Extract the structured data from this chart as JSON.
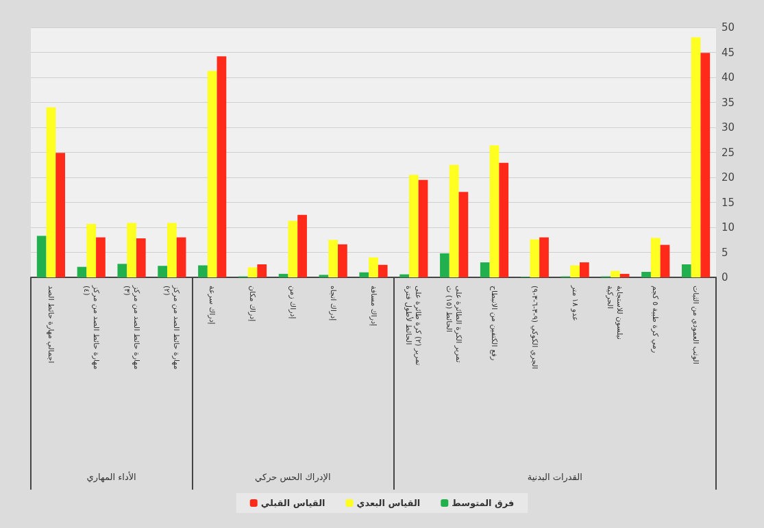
{
  "chart_data": {
    "type": "bar",
    "categories": [
      "اجمالي مهارة حائط الصد",
      "مهارة حائط الصد من مركز (٤)",
      "مهارة حائط الصد من مركز (٣)",
      "مهارة حائط الصد من مركز (٢)",
      "إدراك سرعة",
      "إدراك مكان",
      "إدراك زمن",
      "إدراك اتجاه",
      "إدراك مسافة",
      "تمرير (٢) كرة طائرة على الحائط لأطول فترة",
      "تمرير الكرة الطائرة على الحائط (١٥) ث",
      "رفع الكتفين من الانبطاح",
      "الجري الكوكي (٩-٣-٦-٣-٩)",
      "عدو ١٨ متر",
      "نيلسون للاستجابة الحركية",
      "رمي كرة طبية ٥ كجم",
      "الوثب العمودي من الثبات"
    ],
    "series": [
      {
        "name": "فرق المتوسط",
        "color": "#22b04f",
        "values": [
          8.3,
          2.1,
          2.7,
          2.3,
          2.4,
          0.2,
          0.7,
          0.5,
          1,
          0.6,
          4.8,
          3,
          0.1,
          0.2,
          0.2,
          1.1,
          2.6
        ]
      },
      {
        "name": "القياس البعدي",
        "color": "#ffff22",
        "values": [
          34,
          10.7,
          10.9,
          10.9,
          41.3,
          2,
          11.3,
          7.5,
          4,
          20.5,
          22.5,
          26.4,
          7.6,
          2.4,
          1.3,
          7.9,
          48
        ]
      },
      {
        "name": "القياس القبلي",
        "color": "#ff2a1a",
        "values": [
          24.9,
          8,
          7.8,
          8,
          44.2,
          2.6,
          12.5,
          6.6,
          2.5,
          19.5,
          17.1,
          22.9,
          8,
          3,
          0.7,
          6.5,
          44.9
        ]
      }
    ],
    "annotations": [
      "الأداء المهاري",
      "الإدراك الحس حركي",
      "القدرات البدنية"
    ],
    "ylim": [
      0,
      50
    ],
    "yticks": [
      0,
      5,
      10,
      15,
      20,
      25,
      30,
      35,
      40,
      45,
      50
    ],
    "grid": "y",
    "legend": "bottom"
  }
}
